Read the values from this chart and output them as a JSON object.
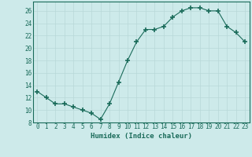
{
  "x": [
    0,
    1,
    2,
    3,
    4,
    5,
    6,
    7,
    8,
    9,
    10,
    11,
    12,
    13,
    14,
    15,
    16,
    17,
    18,
    19,
    20,
    21,
    22,
    23
  ],
  "y": [
    13,
    12,
    11,
    11,
    10.5,
    10,
    9.5,
    8.5,
    11,
    14.5,
    18,
    21,
    23,
    23,
    23.5,
    25,
    26,
    26.5,
    26.5,
    26,
    26,
    23.5,
    22.5,
    21
  ],
  "line_color": "#1a6b5a",
  "marker": "+",
  "marker_size": 4,
  "marker_lw": 1.2,
  "bg_color": "#cdeaea",
  "grid_color": "#b8d8d8",
  "spine_color": "#1a6b5a",
  "xlabel": "Humidex (Indice chaleur)",
  "ylim": [
    8,
    27.5
  ],
  "xlim": [
    -0.5,
    23.5
  ],
  "yticks": [
    8,
    10,
    12,
    14,
    16,
    18,
    20,
    22,
    24,
    26
  ],
  "xticks": [
    0,
    1,
    2,
    3,
    4,
    5,
    6,
    7,
    8,
    9,
    10,
    11,
    12,
    13,
    14,
    15,
    16,
    17,
    18,
    19,
    20,
    21,
    22,
    23
  ],
  "tick_fontsize": 5.5,
  "xlabel_fontsize": 6.5
}
